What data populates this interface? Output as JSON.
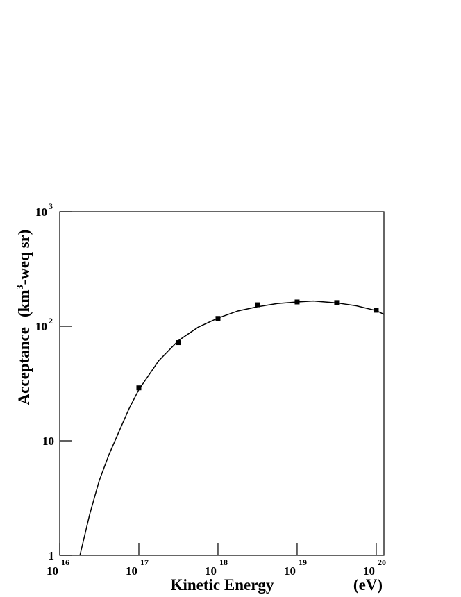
{
  "chart_data": {
    "type": "scatter",
    "xlabel": "Kinetic Energy",
    "xunit": "(eV)",
    "ylabel": [
      "Acceptance",
      "(km",
      "3",
      "-weq sr)"
    ],
    "xscale": "log",
    "yscale": "log",
    "xlim": [
      1e+16,
      1.25e+20
    ],
    "ylim": [
      1,
      1000
    ],
    "xticks": [
      {
        "value": 1e+16,
        "label": "10",
        "exponent": "16"
      },
      {
        "value": 1e+17,
        "label": "10",
        "exponent": "17"
      },
      {
        "value": 1e+18,
        "label": "10",
        "exponent": "18"
      },
      {
        "value": 1e+19,
        "label": "10",
        "exponent": "19"
      },
      {
        "value": 1e+20,
        "label": "10",
        "exponent": "20"
      }
    ],
    "yticks": [
      1,
      10,
      {
        "value": 100,
        "label": "10",
        "exponent": "2"
      },
      {
        "value": 1000,
        "label": "10",
        "exponent": "3"
      }
    ],
    "points": {
      "x": [
        1e+17,
        3.16e+17,
        1e+18,
        3.16e+18,
        1e+19,
        3.16e+19,
        1e+20
      ],
      "y": [
        29,
        72,
        117,
        154,
        163,
        161,
        138
      ]
    },
    "curve": {
      "x": [
        1.8e+16,
        2.4e+16,
        3.16e+16,
        4.2e+16,
        5.6e+16,
        7.5e+16,
        1e+17,
        1.78e+17,
        3.16e+17,
        5.6e+17,
        1e+18,
        1.78e+18,
        3.16e+18,
        5.6e+18,
        1e+19,
        1.6e+19,
        3.16e+19,
        5.6e+19,
        1e+20,
        1.25e+20
      ],
      "y": [
        1,
        2.3,
        4.5,
        7.6,
        12,
        19,
        28,
        50,
        75,
        98,
        118,
        136,
        148,
        158,
        163,
        166,
        160,
        151,
        137,
        127
      ]
    },
    "color": "#000000"
  }
}
